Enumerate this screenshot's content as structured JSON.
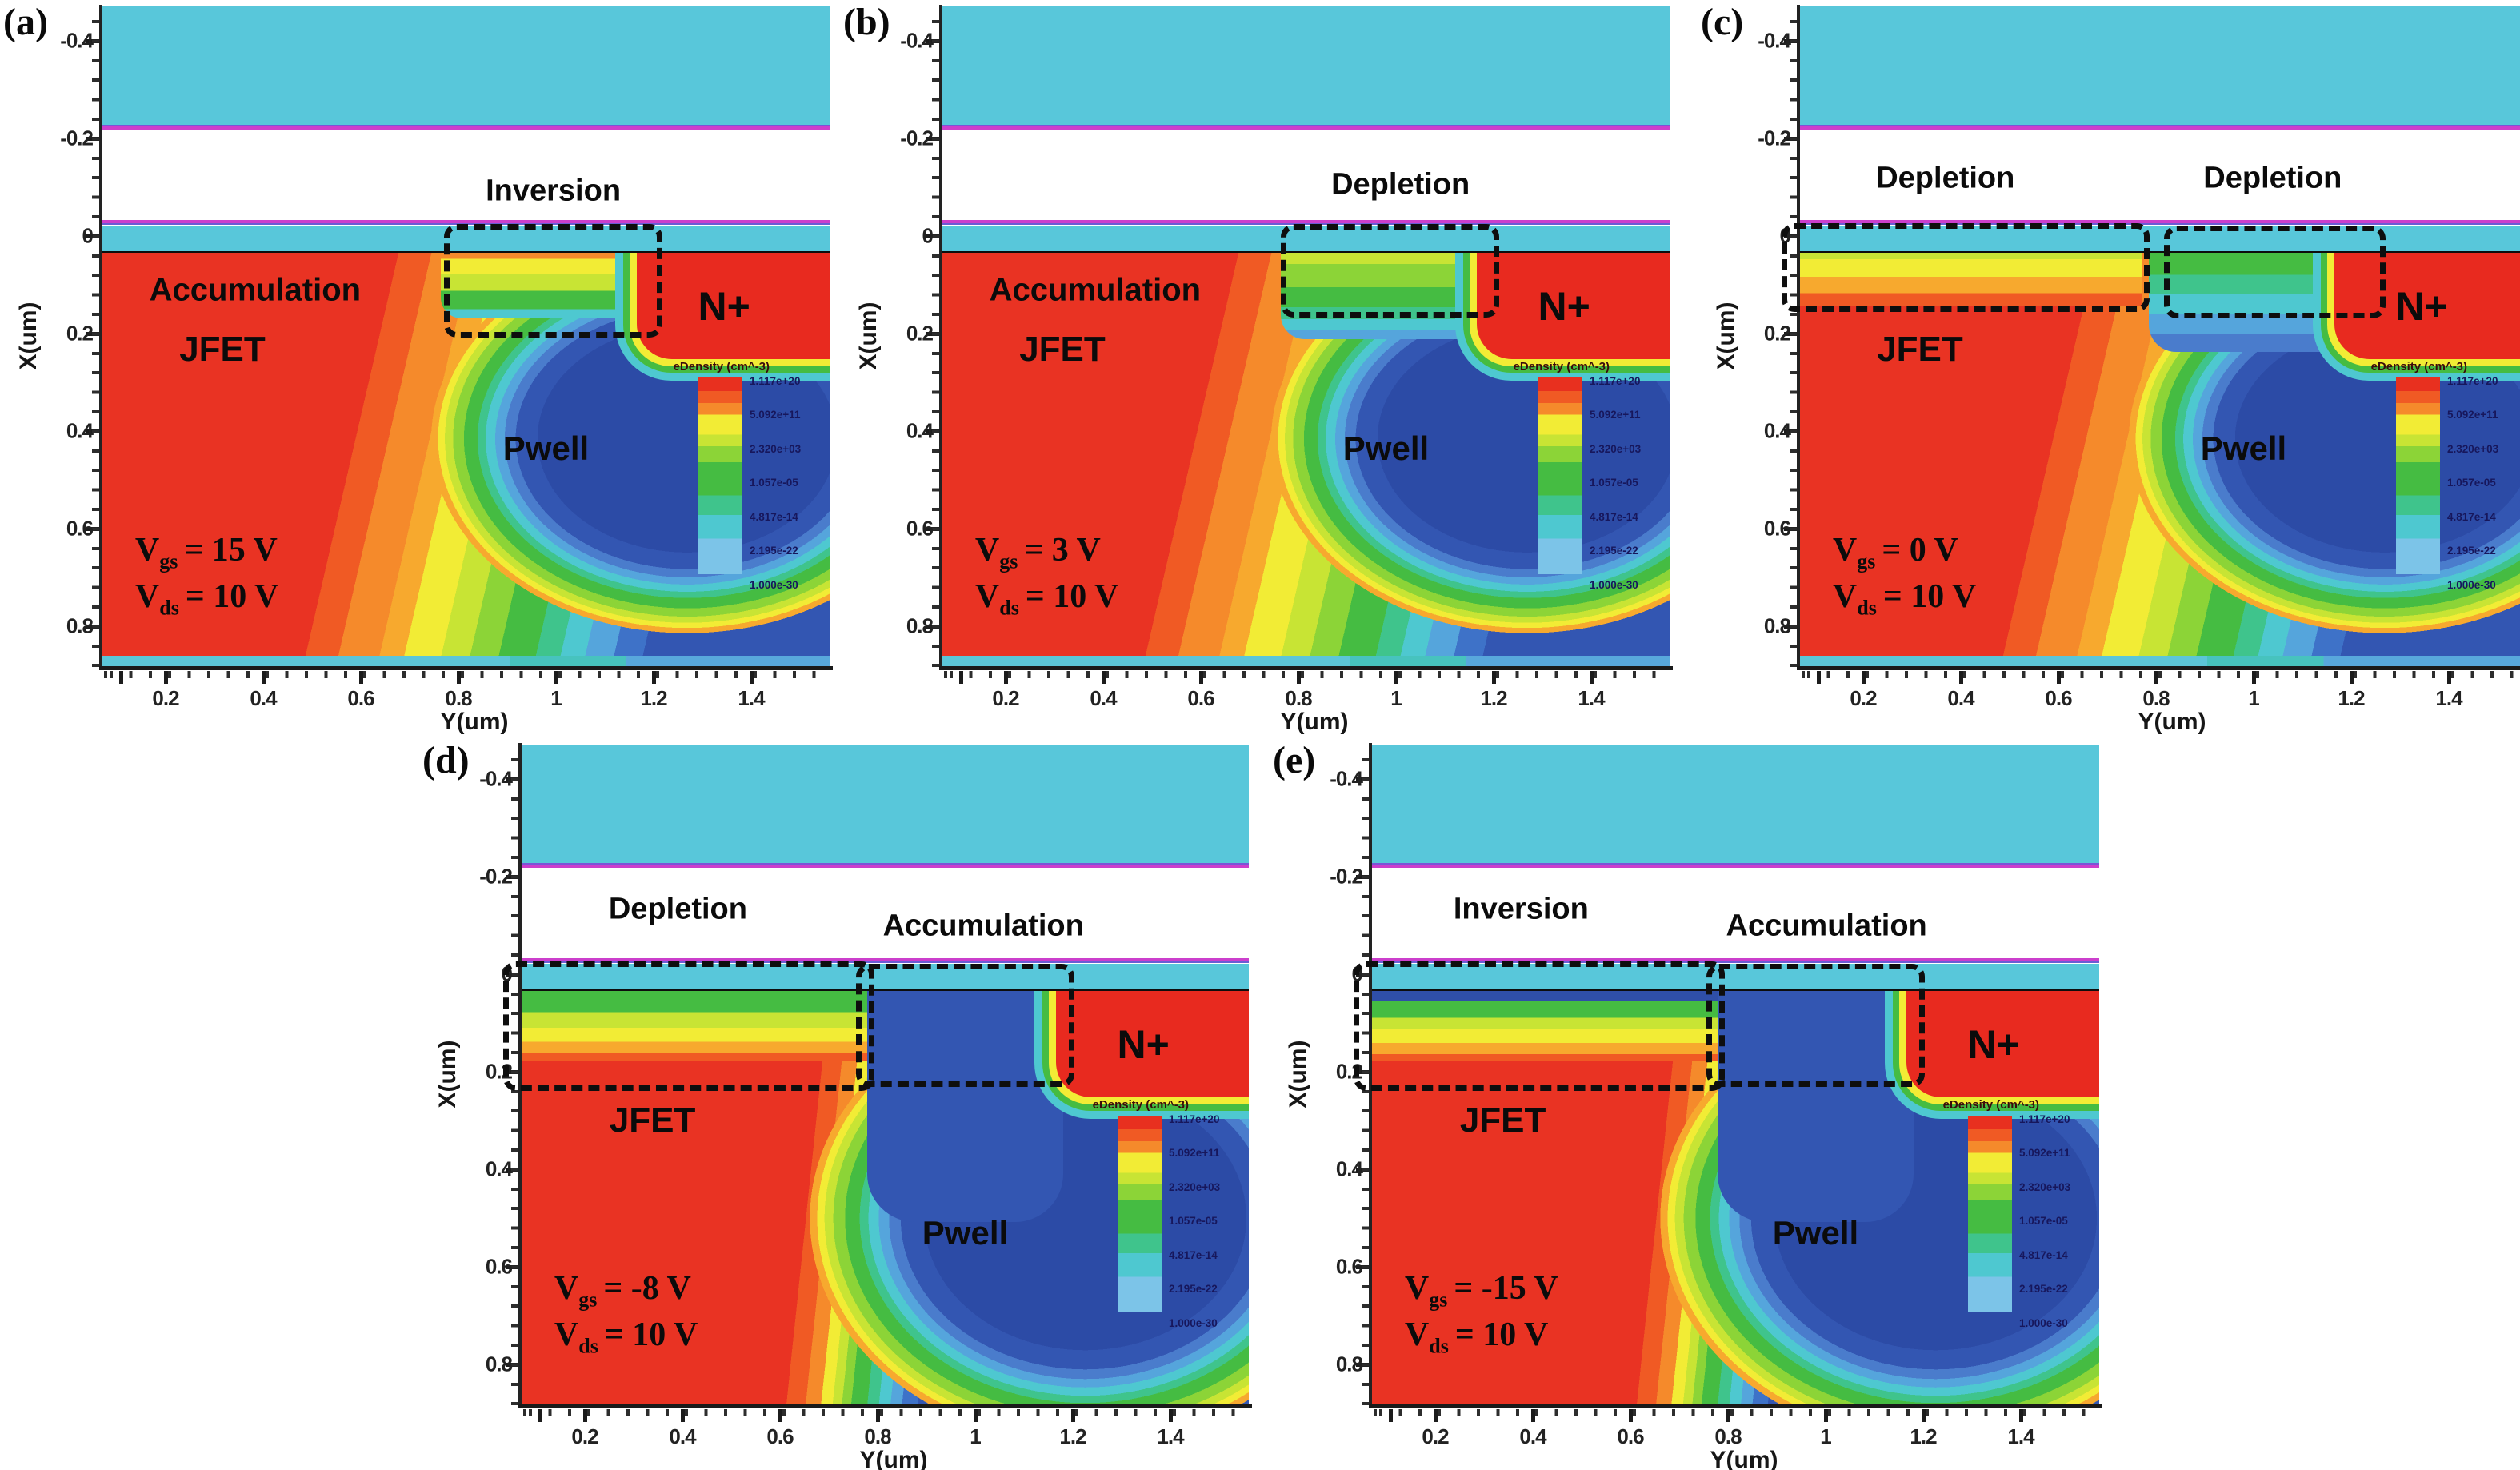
{
  "colorbar": {
    "title": "eDensity (cm^-3)",
    "labels": [
      "1.117e+20",
      "5.092e+11",
      "2.320e+03",
      "1.057e-05",
      "4.817e-14",
      "2.195e-22",
      "1.000e-30"
    ]
  },
  "axes": {
    "x_title": "Y(um)",
    "y_title": "X(um)",
    "x_ticks": [
      "0.2",
      "0.4",
      "0.6",
      "0.8",
      "1",
      "1.2",
      "1.4"
    ],
    "y_ticks": [
      "-0.4",
      "-0.2",
      "0",
      "0.2",
      "0.4",
      "0.6",
      "0.8"
    ]
  },
  "palette": {
    "gate_cyan": "#58C7DA",
    "interface_magenta": "#CC3FCC",
    "high_density_red": "#E93323",
    "orange": "#F58A2B",
    "yellow": "#F2EC35",
    "green": "#45BC42",
    "cyan_band": "#4EC8D0",
    "pwell_blue": "#3356B2",
    "annotation_black": "#0E0E0E"
  },
  "panels": [
    {
      "label": "(a)",
      "vgs": {
        "sym": "V",
        "sub": "gs",
        "val": "= 15 V"
      },
      "vds": {
        "sym": "V",
        "sub": "ds",
        "val": "= 10 V"
      },
      "annotations": {
        "channel": "Inversion"
      },
      "regions": {
        "accumulation": "Accumulation",
        "jfet": "JFET",
        "pwell": "Pwell",
        "nplus": "N+"
      }
    },
    {
      "label": "(b)",
      "vgs": {
        "sym": "V",
        "sub": "gs",
        "val": "= 3 V"
      },
      "vds": {
        "sym": "V",
        "sub": "ds",
        "val": "= 10 V"
      },
      "annotations": {
        "channel": "Depletion"
      },
      "regions": {
        "accumulation": "Accumulation",
        "jfet": "JFET",
        "pwell": "Pwell",
        "nplus": "N+"
      }
    },
    {
      "label": "(c)",
      "vgs": {
        "sym": "V",
        "sub": "gs",
        "val": "= 0 V"
      },
      "vds": {
        "sym": "V",
        "sub": "ds",
        "val": "= 10 V"
      },
      "annotations": {
        "left": "Depletion",
        "channel": "Depletion"
      },
      "regions": {
        "jfet": "JFET",
        "pwell": "Pwell",
        "nplus": "N+"
      }
    },
    {
      "label": "(d)",
      "vgs": {
        "sym": "V",
        "sub": "gs",
        "val": "= -8 V"
      },
      "vds": {
        "sym": "V",
        "sub": "ds",
        "val": "= 10 V"
      },
      "annotations": {
        "left": "Depletion",
        "channel": "Accumulation"
      },
      "regions": {
        "jfet": "JFET",
        "pwell": "Pwell",
        "nplus": "N+"
      }
    },
    {
      "label": "(e)",
      "vgs": {
        "sym": "V",
        "sub": "gs",
        "val": "= -15 V"
      },
      "vds": {
        "sym": "V",
        "sub": "ds",
        "val": "= 10 V"
      },
      "annotations": {
        "left": "Inversion",
        "channel": "Accumulation"
      },
      "regions": {
        "jfet": "JFET",
        "pwell": "Pwell",
        "nplus": "N+"
      }
    }
  ],
  "chart_data": [
    {
      "type": "heatmap",
      "panel": "(a)",
      "title": "eDensity contour at Vgs = 15 V, Vds = 10 V",
      "xlabel": "Y(um)",
      "ylabel": "X(um)",
      "x_ticks": [
        0.2,
        0.4,
        0.6,
        0.8,
        1,
        1.2,
        1.4
      ],
      "y_ticks": [
        -0.4,
        -0.2,
        0,
        0.2,
        0.4,
        0.6,
        0.8
      ],
      "xlim": [
        0.07,
        1.56
      ],
      "ylim": [
        0.89,
        -0.47
      ],
      "colorbar_title": "eDensity (cm^-3)",
      "colorbar_ticks": [
        "1.117e+20",
        "5.092e+11",
        "2.320e+03",
        "1.057e-05",
        "4.817e-14",
        "2.195e-22",
        "1.000e-30"
      ],
      "condition": {
        "Vgs_V": 15,
        "Vds_V": 10
      },
      "regions": [
        "Accumulation",
        "JFET",
        "Pwell",
        "N+"
      ],
      "annotated_surface_state": [
        "Inversion (channel region, dashed box)"
      ]
    },
    {
      "type": "heatmap",
      "panel": "(b)",
      "title": "eDensity contour at Vgs = 3 V, Vds = 10 V",
      "xlabel": "Y(um)",
      "ylabel": "X(um)",
      "x_ticks": [
        0.2,
        0.4,
        0.6,
        0.8,
        1,
        1.2,
        1.4
      ],
      "y_ticks": [
        -0.4,
        -0.2,
        0,
        0.2,
        0.4,
        0.6,
        0.8
      ],
      "xlim": [
        0.07,
        1.56
      ],
      "ylim": [
        0.89,
        -0.47
      ],
      "colorbar_title": "eDensity (cm^-3)",
      "colorbar_ticks": [
        "1.117e+20",
        "5.092e+11",
        "2.320e+03",
        "1.057e-05",
        "4.817e-14",
        "2.195e-22",
        "1.000e-30"
      ],
      "condition": {
        "Vgs_V": 3,
        "Vds_V": 10
      },
      "regions": [
        "Accumulation",
        "JFET",
        "Pwell",
        "N+"
      ],
      "annotated_surface_state": [
        "Depletion (channel region, dashed box)"
      ]
    },
    {
      "type": "heatmap",
      "panel": "(c)",
      "title": "eDensity contour at Vgs = 0 V, Vds = 10 V",
      "xlabel": "Y(um)",
      "ylabel": "X(um)",
      "x_ticks": [
        0.2,
        0.4,
        0.6,
        0.8,
        1,
        1.2,
        1.4
      ],
      "y_ticks": [
        -0.4,
        -0.2,
        0,
        0.2,
        0.4,
        0.6,
        0.8
      ],
      "xlim": [
        0.07,
        1.56
      ],
      "ylim": [
        0.89,
        -0.47
      ],
      "colorbar_title": "eDensity (cm^-3)",
      "colorbar_ticks": [
        "1.117e+20",
        "5.092e+11",
        "2.320e+03",
        "1.057e-05",
        "4.817e-14",
        "2.195e-22",
        "1.000e-30"
      ],
      "condition": {
        "Vgs_V": 0,
        "Vds_V": 10
      },
      "regions": [
        "JFET",
        "Pwell",
        "N+"
      ],
      "annotated_surface_state": [
        "Depletion (JFET surface, dashed box)",
        "Depletion (channel region, dashed box)"
      ]
    },
    {
      "type": "heatmap",
      "panel": "(d)",
      "title": "eDensity contour at Vgs = -8 V, Vds = 10 V",
      "xlabel": "Y(um)",
      "ylabel": "X(um)",
      "x_ticks": [
        0.2,
        0.4,
        0.6,
        0.8,
        1,
        1.2,
        1.4
      ],
      "y_ticks": [
        -0.4,
        -0.2,
        0,
        0.2,
        0.4,
        0.6,
        0.8
      ],
      "xlim": [
        0.07,
        1.56
      ],
      "ylim": [
        0.89,
        -0.47
      ],
      "colorbar_title": "eDensity (cm^-3)",
      "colorbar_ticks": [
        "1.117e+20",
        "5.092e+11",
        "2.320e+03",
        "1.057e-05",
        "4.817e-14",
        "2.195e-22",
        "1.000e-30"
      ],
      "condition": {
        "Vgs_V": -8,
        "Vds_V": 10
      },
      "regions": [
        "JFET",
        "Pwell",
        "N+"
      ],
      "annotated_surface_state": [
        "Depletion (JFET surface, dashed box)",
        "Accumulation (channel region, dashed box)"
      ]
    },
    {
      "type": "heatmap",
      "panel": "(e)",
      "title": "eDensity contour at Vgs = -15 V, Vds = 10 V",
      "xlabel": "Y(um)",
      "ylabel": "X(um)",
      "x_ticks": [
        0.2,
        0.4,
        0.6,
        0.8,
        1,
        1.2,
        1.4
      ],
      "y_ticks": [
        -0.4,
        -0.2,
        0,
        0.2,
        0.4,
        0.6,
        0.8
      ],
      "xlim": [
        0.07,
        1.56
      ],
      "ylim": [
        0.89,
        -0.47
      ],
      "colorbar_title": "eDensity (cm^-3)",
      "colorbar_ticks": [
        "1.117e+20",
        "5.092e+11",
        "2.320e+03",
        "1.057e-05",
        "4.817e-14",
        "2.195e-22",
        "1.000e-30"
      ],
      "condition": {
        "Vgs_V": -15,
        "Vds_V": 10
      },
      "regions": [
        "JFET",
        "Pwell",
        "N+"
      ],
      "annotated_surface_state": [
        "Inversion (JFET surface, dashed box)",
        "Accumulation (channel region, dashed box)"
      ]
    }
  ]
}
